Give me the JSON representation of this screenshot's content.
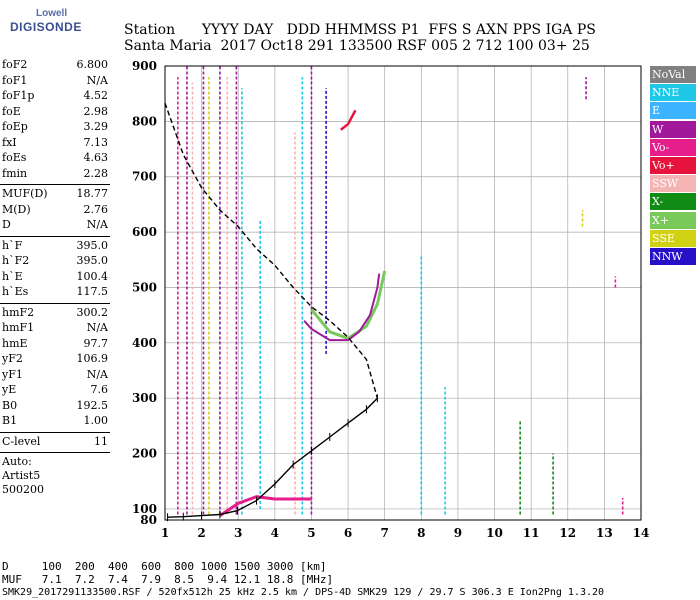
{
  "logo": {
    "top": "Lowell",
    "bottom": "DIGISONDE"
  },
  "header": {
    "line1": "Station      YYYY DAY   DDD HHMMSS P1  FFS S AXN PPS IGA PS",
    "line2": "Santa Maria  2017 Oct18 291 133500 RSF 005 2 712 100 03+ 25"
  },
  "params_a": [
    {
      "k": "foF2",
      "v": "6.800"
    },
    {
      "k": "foF1",
      "v": "N/A"
    },
    {
      "k": "foF1p",
      "v": "4.52"
    },
    {
      "k": "foE",
      "v": "2.98"
    },
    {
      "k": "foEp",
      "v": "3.29"
    },
    {
      "k": "fxI",
      "v": "7.13"
    },
    {
      "k": "foEs",
      "v": "4.63"
    },
    {
      "k": "fmin",
      "v": "2.28"
    }
  ],
  "params_b": [
    {
      "k": "MUF(D)",
      "v": "18.77"
    },
    {
      "k": "M(D)",
      "v": "2.76"
    },
    {
      "k": "D",
      "v": "N/A"
    }
  ],
  "params_c": [
    {
      "k": "h`F",
      "v": "395.0"
    },
    {
      "k": "h`F2",
      "v": "395.0"
    },
    {
      "k": "h`E",
      "v": "100.4"
    },
    {
      "k": "h`Es",
      "v": "117.5"
    }
  ],
  "params_d": [
    {
      "k": "hmF2",
      "v": "300.2"
    },
    {
      "k": "hmF1",
      "v": "N/A"
    },
    {
      "k": "hmE",
      "v": "97.7"
    },
    {
      "k": "yF2",
      "v": "106.9"
    },
    {
      "k": "yF1",
      "v": "N/A"
    },
    {
      "k": "yE",
      "v": "7.6"
    },
    {
      "k": "B0",
      "v": "192.5"
    },
    {
      "k": "B1",
      "v": "1.00"
    }
  ],
  "clevel": {
    "k": "C-level",
    "v": "11"
  },
  "auto": {
    "line1": "Auto:",
    "line2": "Artist5",
    "line3": "500200"
  },
  "legend": [
    {
      "label": "NoVal",
      "color": "#808080"
    },
    {
      "label": "NNE",
      "color": "#1ec8e6"
    },
    {
      "label": "E",
      "color": "#3cb4ff"
    },
    {
      "label": "W",
      "color": "#a0199b"
    },
    {
      "label": "Vo-",
      "color": "#e61e8c"
    },
    {
      "label": "Vo+",
      "color": "#e6143c"
    },
    {
      "label": "SSW",
      "color": "#f5b4b4"
    },
    {
      "label": "X-",
      "color": "#108c14"
    },
    {
      "label": "X+",
      "color": "#78c85a"
    },
    {
      "label": "SSE",
      "color": "#d2d214"
    },
    {
      "label": "NNW",
      "color": "#2810c8"
    }
  ],
  "footer": {
    "line1": "D     100  200  400  600  800 1000 1500 3000 [km]",
    "line2": "MUF   7.1  7.2  7.4  7.9  8.5  9.4 12.1 18.8 [MHz]",
    "line3": "SMK29_2017291133500.RSF / 520fx512h 25 kHz 2.5 km / DPS-4D SMK29 129 / 29.7 S 306.3 E Ion2Png 1.3.20"
  },
  "chart_data": {
    "type": "scatter",
    "xlim": [
      1,
      14
    ],
    "ylim": [
      80,
      900
    ],
    "x_ticks": [
      1,
      2,
      3,
      4,
      5,
      6,
      7,
      8,
      9,
      10,
      11,
      12,
      13,
      14
    ],
    "y_ticks": [
      80,
      100,
      200,
      300,
      400,
      500,
      600,
      700,
      800,
      900
    ],
    "grid": true,
    "legend_position": "right",
    "profile_true_height": [
      [
        1.07,
        85
      ],
      [
        1.5,
        86
      ],
      [
        2.0,
        88
      ],
      [
        2.5,
        90
      ],
      [
        2.98,
        97
      ],
      [
        3.5,
        115
      ],
      [
        4.0,
        145
      ],
      [
        4.5,
        180
      ],
      [
        5.0,
        205
      ],
      [
        5.5,
        230
      ],
      [
        6.0,
        255
      ],
      [
        6.5,
        280
      ],
      [
        6.8,
        300
      ]
    ],
    "profile_virtual_height": [
      [
        1.0,
        833
      ],
      [
        1.5,
        740
      ],
      [
        2.0,
        680
      ],
      [
        2.5,
        640
      ],
      [
        3.0,
        610
      ],
      [
        3.5,
        570
      ],
      [
        4.0,
        540
      ],
      [
        4.5,
        500
      ],
      [
        5.0,
        465
      ],
      [
        5.5,
        440
      ],
      [
        6.0,
        410
      ],
      [
        6.5,
        370
      ],
      [
        6.8,
        300
      ]
    ],
    "trace_o": [
      [
        4.8,
        440
      ],
      [
        5.0,
        425
      ],
      [
        5.5,
        405
      ],
      [
        6.0,
        405
      ],
      [
        6.3,
        420
      ],
      [
        6.6,
        450
      ],
      [
        6.8,
        500
      ],
      [
        6.85,
        525
      ]
    ],
    "trace_x": [
      [
        5.0,
        460
      ],
      [
        5.5,
        420
      ],
      [
        6.0,
        408
      ],
      [
        6.5,
        430
      ],
      [
        6.8,
        470
      ],
      [
        7.0,
        530
      ]
    ],
    "trace_es": [
      [
        2.5,
        88
      ],
      [
        3.0,
        110
      ],
      [
        3.5,
        122
      ],
      [
        4.0,
        118
      ],
      [
        4.5,
        118
      ],
      [
        5.0,
        118
      ]
    ],
    "trace_high": [
      [
        5.8,
        785
      ],
      [
        6.0,
        795
      ],
      [
        6.2,
        820
      ]
    ],
    "vertical_lines": [
      {
        "x": 1.35,
        "color": "#e61e8c",
        "y": [
          90,
          880
        ]
      },
      {
        "x": 1.6,
        "color": "#a0199b",
        "y": [
          90,
          900
        ]
      },
      {
        "x": 1.75,
        "color": "#f5b4b4",
        "y": [
          90,
          870
        ]
      },
      {
        "x": 2.05,
        "color": "#a0199b",
        "y": [
          90,
          900
        ]
      },
      {
        "x": 2.2,
        "color": "#d2d214",
        "y": [
          90,
          880
        ]
      },
      {
        "x": 2.5,
        "color": "#a0199b",
        "y": [
          90,
          900
        ]
      },
      {
        "x": 2.7,
        "color": "#f5b4b4",
        "y": [
          90,
          880
        ]
      },
      {
        "x": 2.95,
        "color": "#a0199b",
        "y": [
          90,
          900
        ]
      },
      {
        "x": 3.1,
        "color": "#1ec8e6",
        "y": [
          90,
          860
        ]
      },
      {
        "x": 3.6,
        "color": "#1ec8e6",
        "y": [
          100,
          620
        ]
      },
      {
        "x": 4.55,
        "color": "#f5b4b4",
        "y": [
          90,
          780
        ]
      },
      {
        "x": 4.75,
        "color": "#1ec8e6",
        "y": [
          90,
          880
        ]
      },
      {
        "x": 5.0,
        "color": "#a0199b",
        "y": [
          90,
          900
        ]
      },
      {
        "x": 5.4,
        "color": "#2810c8",
        "y": [
          380,
          860
        ]
      },
      {
        "x": 8.0,
        "color": "#1ec8e6",
        "y": [
          90,
          560
        ]
      },
      {
        "x": 8.65,
        "color": "#1ec8e6",
        "y": [
          90,
          320
        ]
      },
      {
        "x": 10.7,
        "color": "#108c14",
        "y": [
          90,
          260
        ]
      },
      {
        "x": 11.6,
        "color": "#108c14",
        "y": [
          90,
          200
        ]
      },
      {
        "x": 12.5,
        "color": "#a0199b",
        "y": [
          840,
          880
        ]
      },
      {
        "x": 12.4,
        "color": "#d2d214",
        "y": [
          610,
          640
        ]
      },
      {
        "x": 13.3,
        "color": "#e61e8c",
        "y": [
          500,
          520
        ]
      },
      {
        "x": 13.5,
        "color": "#e61e8c",
        "y": [
          90,
          120
        ]
      }
    ]
  }
}
